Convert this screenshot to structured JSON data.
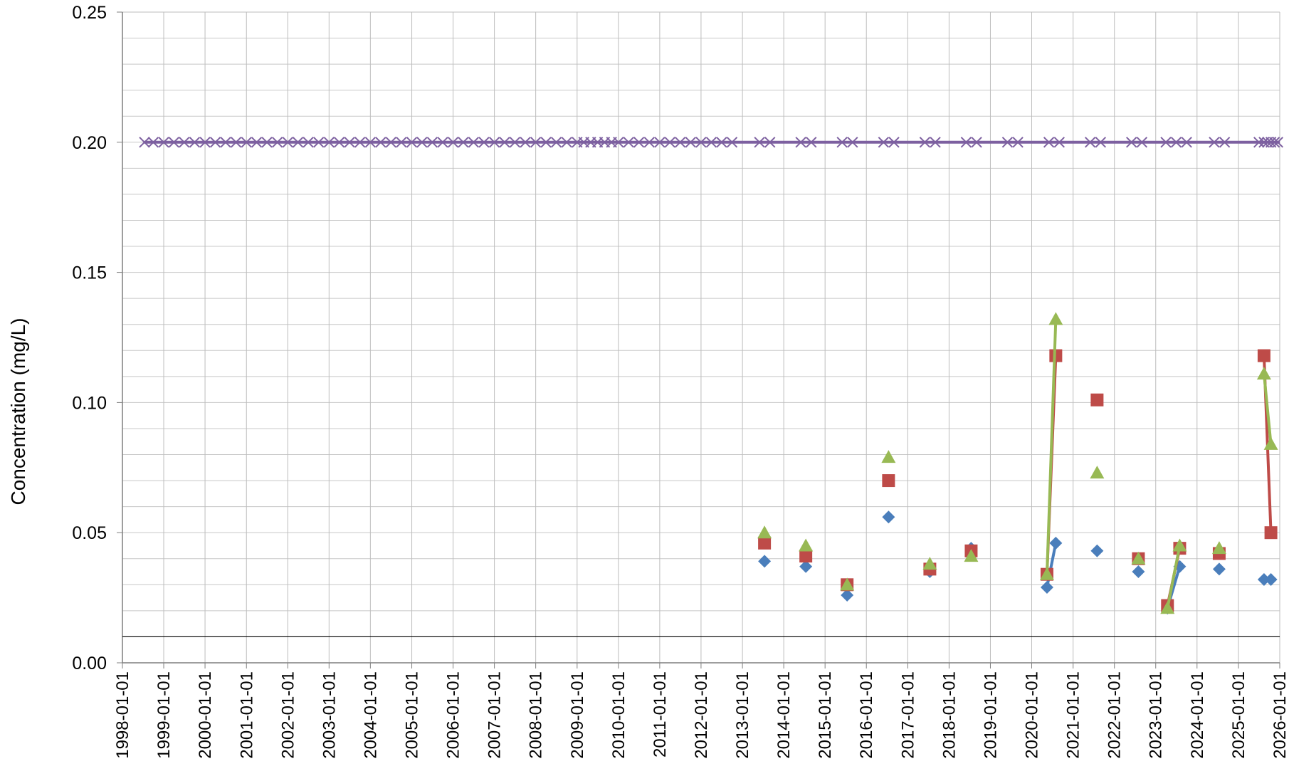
{
  "chart_data": {
    "type": "scatter",
    "title": "",
    "xlabel": "",
    "ylabel": "Concentration (mg/L)",
    "xlim": [
      "1998-01-01",
      "2026-01-01"
    ],
    "ylim": [
      0,
      0.25
    ],
    "y_ticks": [
      "0.00",
      "0.05",
      "0.10",
      "0.15",
      "0.20",
      "0.25"
    ],
    "x_ticks": [
      "1998-01-01",
      "1999-01-01",
      "2000-01-01",
      "2001-01-01",
      "2002-01-01",
      "2003-01-01",
      "2004-01-01",
      "2005-01-01",
      "2006-01-01",
      "2007-01-01",
      "2008-01-01",
      "2009-01-01",
      "2010-01-01",
      "2011-01-01",
      "2012-01-01",
      "2013-01-01",
      "2014-01-01",
      "2015-01-01",
      "2016-01-01",
      "2017-01-01",
      "2018-01-01",
      "2019-01-01",
      "2020-01-01",
      "2021-01-01",
      "2022-01-01",
      "2023-01-01",
      "2024-01-01",
      "2025-01-01",
      "2026-01-01"
    ],
    "grid": true,
    "reference_lines": [
      {
        "y": 0.01,
        "color": "#000000"
      }
    ],
    "series": [
      {
        "marker": "diamond",
        "color": "#4a7ebb",
        "points": [
          {
            "x": "2013-07-15",
            "y": 0.039
          },
          {
            "x": "2014-07-15",
            "y": 0.037
          },
          {
            "x": "2015-07-15",
            "y": 0.026
          },
          {
            "x": "2016-07-15",
            "y": 0.056
          },
          {
            "x": "2017-07-15",
            "y": 0.035
          },
          {
            "x": "2018-07-15",
            "y": 0.044
          },
          {
            "x": "2020-05-15",
            "y": 0.029
          },
          {
            "x": "2020-08-01",
            "y": 0.046
          },
          {
            "x": "2021-08-01",
            "y": 0.043
          },
          {
            "x": "2022-08-01",
            "y": 0.035
          },
          {
            "x": "2023-04-15",
            "y": 0.021
          },
          {
            "x": "2023-08-01",
            "y": 0.037
          },
          {
            "x": "2024-07-15",
            "y": 0.036
          },
          {
            "x": "2025-08-15",
            "y": 0.032
          },
          {
            "x": "2025-10-15",
            "y": 0.032
          }
        ],
        "connected": [
          [
            6,
            7
          ],
          [
            10,
            11
          ]
        ]
      },
      {
        "marker": "square",
        "color": "#be4b48",
        "points": [
          {
            "x": "2013-07-15",
            "y": 0.046
          },
          {
            "x": "2014-07-15",
            "y": 0.041
          },
          {
            "x": "2015-07-15",
            "y": 0.03
          },
          {
            "x": "2016-07-15",
            "y": 0.07
          },
          {
            "x": "2017-07-15",
            "y": 0.036
          },
          {
            "x": "2018-07-15",
            "y": 0.043
          },
          {
            "x": "2020-05-15",
            "y": 0.034
          },
          {
            "x": "2020-08-01",
            "y": 0.118
          },
          {
            "x": "2021-08-01",
            "y": 0.101
          },
          {
            "x": "2022-08-01",
            "y": 0.04
          },
          {
            "x": "2023-04-15",
            "y": 0.022
          },
          {
            "x": "2023-08-01",
            "y": 0.044
          },
          {
            "x": "2024-07-15",
            "y": 0.042
          },
          {
            "x": "2025-08-15",
            "y": 0.118
          },
          {
            "x": "2025-10-15",
            "y": 0.05
          }
        ],
        "connected": [
          [
            6,
            7
          ],
          [
            10,
            11
          ],
          [
            13,
            14
          ]
        ]
      },
      {
        "marker": "triangle",
        "color": "#98b954",
        "points": [
          {
            "x": "2013-07-15",
            "y": 0.05
          },
          {
            "x": "2014-07-15",
            "y": 0.045
          },
          {
            "x": "2015-07-15",
            "y": 0.03
          },
          {
            "x": "2016-07-15",
            "y": 0.079
          },
          {
            "x": "2017-07-15",
            "y": 0.038
          },
          {
            "x": "2018-07-15",
            "y": 0.041
          },
          {
            "x": "2020-05-15",
            "y": 0.034
          },
          {
            "x": "2020-08-01",
            "y": 0.132
          },
          {
            "x": "2021-08-01",
            "y": 0.073
          },
          {
            "x": "2022-08-01",
            "y": 0.04
          },
          {
            "x": "2023-04-15",
            "y": 0.021
          },
          {
            "x": "2023-08-01",
            "y": 0.045
          },
          {
            "x": "2024-07-15",
            "y": 0.044
          },
          {
            "x": "2025-08-15",
            "y": 0.111
          },
          {
            "x": "2025-10-15",
            "y": 0.084
          }
        ],
        "connected": [
          [
            6,
            7
          ],
          [
            10,
            11
          ],
          [
            13,
            14
          ]
        ]
      },
      {
        "marker": "x",
        "color": "#7d60a0",
        "y": 0.2,
        "line_from": "1998-07-15",
        "line_to": "2026-01-01",
        "x": [
          "1998-07-15",
          "1998-10-01",
          "1999-01-01",
          "1999-04-01",
          "1999-07-01",
          "1999-10-01",
          "2000-01-01",
          "2000-04-01",
          "2000-07-01",
          "2000-10-01",
          "2001-01-01",
          "2001-04-01",
          "2001-07-01",
          "2001-10-01",
          "2002-01-01",
          "2002-04-01",
          "2002-07-01",
          "2002-10-01",
          "2003-01-01",
          "2003-04-01",
          "2003-07-01",
          "2003-10-01",
          "2004-01-01",
          "2004-04-01",
          "2004-07-01",
          "2004-10-01",
          "2005-01-01",
          "2005-04-01",
          "2005-07-01",
          "2005-10-01",
          "2006-01-01",
          "2006-04-01",
          "2006-07-01",
          "2006-10-01",
          "2007-01-01",
          "2007-04-01",
          "2007-07-01",
          "2007-10-01",
          "2008-01-01",
          "2008-04-01",
          "2008-07-01",
          "2008-10-01",
          "2009-01-01",
          "2009-03-01",
          "2009-05-01",
          "2009-07-01",
          "2009-09-01",
          "2009-11-01",
          "2010-01-01",
          "2010-04-01",
          "2010-07-01",
          "2010-10-01",
          "2011-01-01",
          "2011-04-01",
          "2011-07-01",
          "2011-10-01",
          "2012-01-01",
          "2012-04-01",
          "2012-07-01",
          "2012-10-01",
          "2013-06-01",
          "2013-09-01",
          "2014-06-01",
          "2014-09-01",
          "2015-06-01",
          "2015-09-01",
          "2016-06-01",
          "2016-09-01",
          "2017-06-01",
          "2017-09-01",
          "2018-06-01",
          "2018-09-01",
          "2019-06-01",
          "2019-09-01",
          "2020-06-01",
          "2020-09-01",
          "2021-06-01",
          "2021-09-01",
          "2022-06-01",
          "2022-09-01",
          "2023-04-01",
          "2023-07-01",
          "2023-10-01",
          "2024-06-01",
          "2024-09-01",
          "2025-07-01",
          "2025-08-15",
          "2025-09-15",
          "2025-10-15",
          "2025-11-15",
          "2025-12-15"
        ]
      }
    ]
  }
}
